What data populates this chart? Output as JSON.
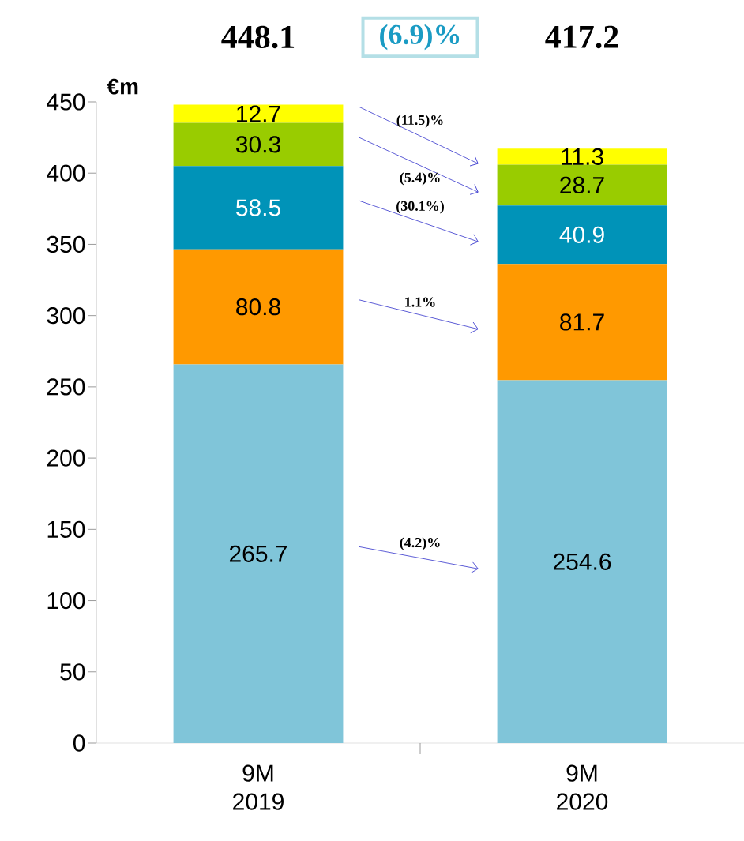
{
  "chart_data": {
    "type": "bar",
    "stacked": true,
    "data_labels": true,
    "ylabel": "€m",
    "categories": [
      "9M 2019",
      "9M 2020"
    ],
    "ylim": [
      0,
      450
    ],
    "yticks": [
      0,
      50,
      100,
      150,
      200,
      250,
      300,
      350,
      400,
      450
    ],
    "totals": [
      "448.1",
      "417.2"
    ],
    "annotations": [
      "(6.9)%",
      "(4.2)%",
      "1.1%",
      "(30.1%)",
      "(5.4)%",
      "(11.5)%"
    ],
    "series": [
      {
        "color": "#80c5d9",
        "values": [
          265.7,
          254.6
        ]
      },
      {
        "color": "#ff9900",
        "values": [
          80.8,
          81.7
        ]
      },
      {
        "color": "#0093b8",
        "values": [
          58.5,
          40.9
        ]
      },
      {
        "color": "#99cc00",
        "values": [
          30.3,
          28.7
        ]
      },
      {
        "color": "#ffff00",
        "values": [
          12.7,
          11.3
        ]
      }
    ]
  }
}
